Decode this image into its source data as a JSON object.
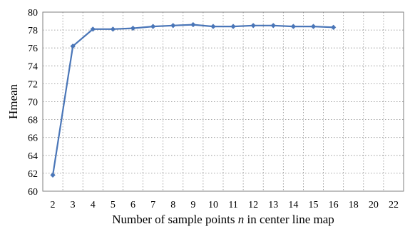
{
  "chart_data": {
    "type": "line",
    "title": "",
    "xlabel_parts": [
      "Number of sample points ",
      "n",
      " in center line map"
    ],
    "ylabel": "Hmean",
    "x_ticks": [
      "2",
      "3",
      "4",
      "5",
      "6",
      "7",
      "8",
      "9",
      "10",
      "11",
      "12",
      "13",
      "14",
      "15",
      "16",
      "18",
      "20",
      "22"
    ],
    "y_ticks": [
      "60",
      "62",
      "64",
      "66",
      "68",
      "70",
      "72",
      "74",
      "76",
      "78",
      "80"
    ],
    "ylim": [
      60,
      80
    ],
    "grid": true,
    "series": [
      {
        "color": "#4a76b8",
        "marker": "diamond",
        "x": [
          "2",
          "3",
          "4",
          "5",
          "6",
          "7",
          "8",
          "9",
          "10",
          "11",
          "12",
          "13",
          "14",
          "15",
          "16"
        ],
        "values": [
          61.8,
          76.2,
          78.1,
          78.1,
          78.2,
          78.4,
          78.5,
          78.6,
          78.4,
          78.4,
          78.5,
          78.5,
          78.4,
          78.4,
          78.3
        ]
      }
    ]
  }
}
